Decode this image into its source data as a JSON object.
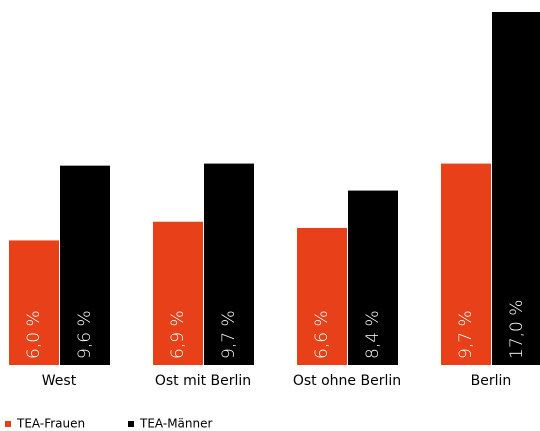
{
  "chart_data": {
    "type": "bar",
    "categories": [
      "West",
      "Ost mit Berlin",
      "Ost ohne Berlin",
      "Berlin"
    ],
    "series": [
      {
        "name": "TEA-Frauen",
        "color": "#e84119",
        "values": [
          6.0,
          6.9,
          6.6,
          9.7
        ],
        "value_labels": [
          "6,0 %",
          "6,9 %",
          "6,6 %",
          "9,7 %"
        ]
      },
      {
        "name": "TEA-Männer",
        "color": "#000000",
        "values": [
          9.6,
          9.7,
          8.4,
          17.0
        ],
        "value_labels": [
          "9,6 %",
          "9,7 %",
          "8,4 %",
          "17,0 %"
        ]
      }
    ]
  }
}
